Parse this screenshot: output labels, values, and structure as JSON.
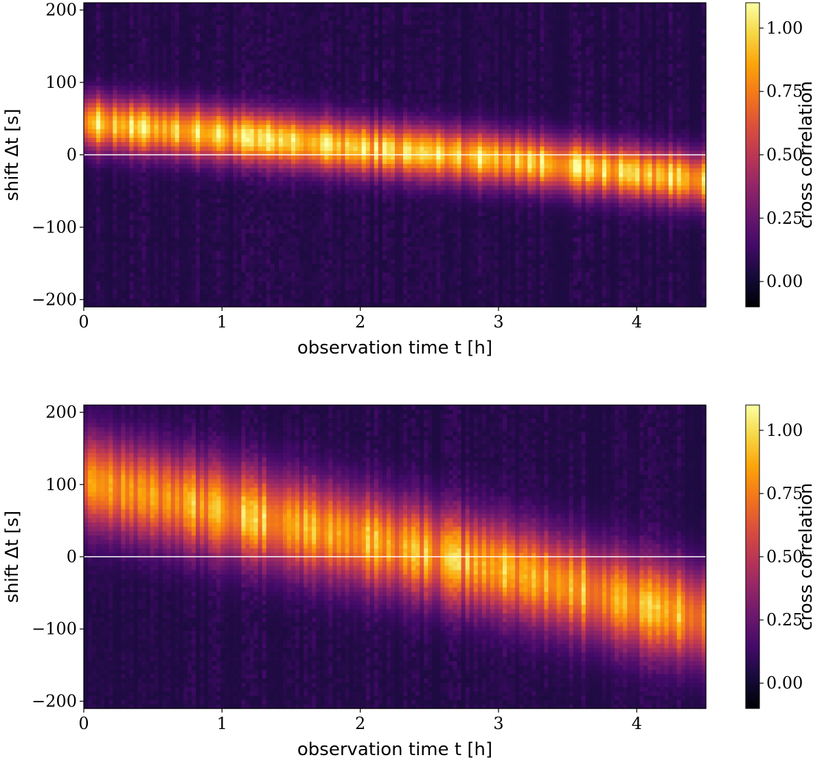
{
  "chart_data": [
    {
      "type": "heatmap",
      "title": "",
      "xlabel": "observation time t [h]",
      "ylabel": "shift Δt [s]",
      "xlim": [
        0,
        4.5
      ],
      "ylim": [
        -210,
        210
      ],
      "x_ticks": [
        0,
        1,
        2,
        3,
        4
      ],
      "y_ticks": [
        200,
        100,
        0,
        -100,
        -200
      ],
      "x_tick_labels": [
        "0",
        "1",
        "2",
        "3",
        "4"
      ],
      "y_tick_labels": [
        "200",
        "100",
        "0",
        "−100",
        "−200"
      ],
      "reference_line": {
        "y": 0,
        "color": "#ffffff"
      },
      "colormap": "inferno",
      "colorbar": {
        "label": "cross correlation",
        "range": [
          -0.1,
          1.1
        ],
        "ticks": [
          1.0,
          0.75,
          0.5,
          0.25,
          0.0
        ],
        "tick_labels": [
          "1.00",
          "0.75",
          "0.50",
          "0.25",
          "0.00"
        ]
      },
      "ridge": {
        "description_points_t_h": [
          0,
          1,
          2,
          3,
          4,
          4.5
        ],
        "center_shift_s": [
          45,
          28,
          10,
          -5,
          -25,
          -35
        ],
        "peak_value": 0.95,
        "width_s": 25
      }
    },
    {
      "type": "heatmap",
      "title": "",
      "xlabel": "observation time t [h]",
      "ylabel": "shift Δt [s]",
      "xlim": [
        0,
        4.5
      ],
      "ylim": [
        -210,
        210
      ],
      "x_ticks": [
        0,
        1,
        2,
        3,
        4
      ],
      "y_ticks": [
        200,
        100,
        0,
        -100,
        -200
      ],
      "x_tick_labels": [
        "0",
        "1",
        "2",
        "3",
        "4"
      ],
      "y_tick_labels": [
        "200",
        "100",
        "0",
        "−100",
        "−200"
      ],
      "reference_line": {
        "y": 0,
        "color": "#ffffff"
      },
      "colormap": "inferno",
      "colorbar": {
        "label": "cross correlation",
        "range": [
          -0.1,
          1.1
        ],
        "ticks": [
          1.0,
          0.75,
          0.5,
          0.25,
          0.0
        ],
        "tick_labels": [
          "1.00",
          "0.75",
          "0.50",
          "0.25",
          "0.00"
        ]
      },
      "ridge": {
        "description_points_t_h": [
          0,
          1,
          2,
          3,
          4,
          4.5
        ],
        "center_shift_s": [
          105,
          65,
          25,
          -15,
          -65,
          -85
        ],
        "peak_value": 0.85,
        "width_s": 45
      }
    }
  ]
}
